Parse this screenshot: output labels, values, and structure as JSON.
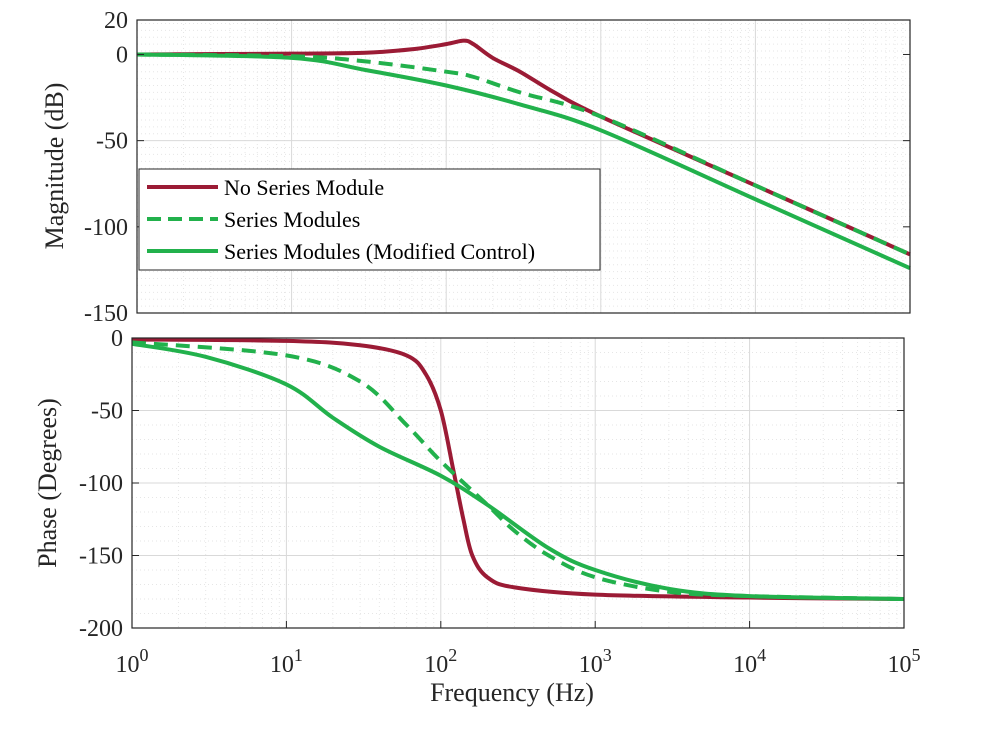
{
  "chart_data": [
    {
      "type": "line",
      "panel": "magnitude",
      "xscale": "log",
      "xlim": [
        1,
        100000
      ],
      "ylim": [
        -150,
        20
      ],
      "yticks": [
        20,
        0,
        -50,
        -100,
        -150
      ],
      "ytick_labels": [
        "20",
        "0",
        "-50",
        "-100",
        "-150"
      ],
      "ylabel": "Magnitude (dB)",
      "grid": true,
      "legend": {
        "placement": "middle-left",
        "entries": [
          "No Series Module",
          "Series Modules",
          "Series Modules (Modified Control)"
        ]
      },
      "series": [
        {
          "name": "No Series Module",
          "color": "#9b1b35",
          "dash": "solid",
          "x": [
            1,
            10,
            30,
            60,
            100,
            130,
            150,
            200,
            300,
            500,
            1000,
            10000,
            100000
          ],
          "y": [
            0,
            0.5,
            1,
            3,
            6,
            8,
            6,
            -2,
            -10,
            -22,
            -36,
            -76,
            -116
          ]
        },
        {
          "name": "Series Modules",
          "color": "#22b14c",
          "dash": "dashed",
          "x": [
            1,
            10,
            30,
            100,
            150,
            300,
            1000,
            10000,
            100000
          ],
          "y": [
            0,
            -1,
            -4,
            -10,
            -13,
            -22,
            -36,
            -76,
            -116
          ]
        },
        {
          "name": "Series Modules (Modified Control)",
          "color": "#22b14c",
          "dash": "solid",
          "x": [
            1,
            10,
            30,
            100,
            300,
            1000,
            10000,
            100000
          ],
          "y": [
            0,
            -2,
            -9,
            -18,
            -29,
            -44,
            -84,
            -124
          ]
        }
      ]
    },
    {
      "type": "line",
      "panel": "phase",
      "xscale": "log",
      "xlim": [
        1,
        100000
      ],
      "ylim": [
        -200,
        0
      ],
      "yticks": [
        0,
        -50,
        -100,
        -150,
        -200
      ],
      "ytick_labels": [
        "0",
        "-50",
        "-100",
        "-150",
        "-200"
      ],
      "xticks": [
        1,
        10,
        100,
        1000,
        10000,
        100000
      ],
      "xtick_labels": [
        {
          "base": "10",
          "exp": "0"
        },
        {
          "base": "10",
          "exp": "1"
        },
        {
          "base": "10",
          "exp": "2"
        },
        {
          "base": "10",
          "exp": "3"
        },
        {
          "base": "10",
          "exp": "4"
        },
        {
          "base": "10",
          "exp": "5"
        }
      ],
      "xlabel": "Frequency (Hz)",
      "ylabel": "Phase (Degrees)",
      "grid": true,
      "series": [
        {
          "name": "No Series Module",
          "color": "#9b1b35",
          "dash": "solid",
          "x": [
            1,
            10,
            30,
            60,
            80,
            100,
            120,
            140,
            160,
            200,
            300,
            1000,
            10000,
            100000
          ],
          "y": [
            -1,
            -2,
            -5,
            -12,
            -25,
            -50,
            -90,
            -125,
            -150,
            -165,
            -172,
            -177,
            -179,
            -180
          ]
        },
        {
          "name": "Series Modules",
          "color": "#22b14c",
          "dash": "dashed",
          "x": [
            1,
            10,
            30,
            60,
            100,
            200,
            300,
            500,
            1000,
            3000,
            10000,
            100000
          ],
          "y": [
            -3,
            -12,
            -30,
            -60,
            -85,
            -115,
            -133,
            -150,
            -165,
            -175,
            -178,
            -180
          ]
        },
        {
          "name": "Series Modules (Modified Control)",
          "color": "#22b14c",
          "dash": "solid",
          "x": [
            1,
            3,
            10,
            20,
            40,
            100,
            200,
            500,
            1000,
            3000,
            10000,
            100000
          ],
          "y": [
            -4,
            -13,
            -32,
            -55,
            -75,
            -95,
            -115,
            -145,
            -160,
            -173,
            -178,
            -180
          ]
        }
      ]
    }
  ]
}
